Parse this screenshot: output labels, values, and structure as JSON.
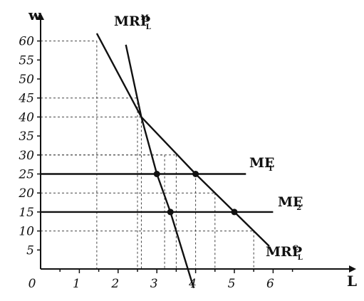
{
  "chart_data": {
    "type": "line",
    "xlabel": "L",
    "ylabel": "w",
    "origin_label": "0",
    "xlim": [
      0,
      7
    ],
    "ylim": [
      0,
      65
    ],
    "x_ticks": [
      1,
      2,
      3,
      4,
      5,
      6
    ],
    "y_ticks": [
      5,
      10,
      15,
      20,
      25,
      30,
      35,
      40,
      45,
      50,
      55,
      60
    ],
    "series": [
      {
        "id": "mrp-c",
        "label_main": "MRP",
        "label_sup": "C",
        "label_sub": "L",
        "style": "solid",
        "points": [
          [
            1.45,
            62
          ],
          [
            2.6,
            40
          ],
          [
            4,
            25
          ],
          [
            5,
            15
          ],
          [
            5.9,
            6
          ]
        ]
      },
      {
        "id": "mrp-m",
        "label_main": "MRP",
        "label_sup": "M",
        "label_sub": "L",
        "style": "solid",
        "points": [
          [
            2.2,
            59
          ],
          [
            2.6,
            40
          ],
          [
            3,
            25
          ],
          [
            3.35,
            15
          ],
          [
            3.95,
            -5
          ]
        ]
      },
      {
        "id": "me1",
        "label_main": "ME",
        "label_sub": "1",
        "style": "solid",
        "points": [
          [
            0,
            25
          ],
          [
            5.3,
            25
          ]
        ]
      },
      {
        "id": "me2",
        "label_main": "ME",
        "label_sub": "2",
        "style": "solid",
        "points": [
          [
            0,
            15
          ],
          [
            6,
            15
          ]
        ]
      }
    ],
    "highlight_points": [
      [
        4,
        25
      ],
      [
        3,
        25
      ],
      [
        5,
        15
      ],
      [
        3.35,
        15
      ]
    ],
    "dashed_guides": [
      {
        "x": 1.45,
        "y": 60
      },
      {
        "x": 2.6,
        "y": 40
      },
      {
        "x": 2.5,
        "y": 45
      },
      {
        "x": 3.2,
        "y": 30
      },
      {
        "x": 3.5,
        "y": 30
      },
      {
        "x": 4,
        "y": 25
      },
      {
        "x": 4.5,
        "y": 20
      },
      {
        "x": 5.5,
        "y": 10
      }
    ],
    "grid": false,
    "legend": "none"
  }
}
